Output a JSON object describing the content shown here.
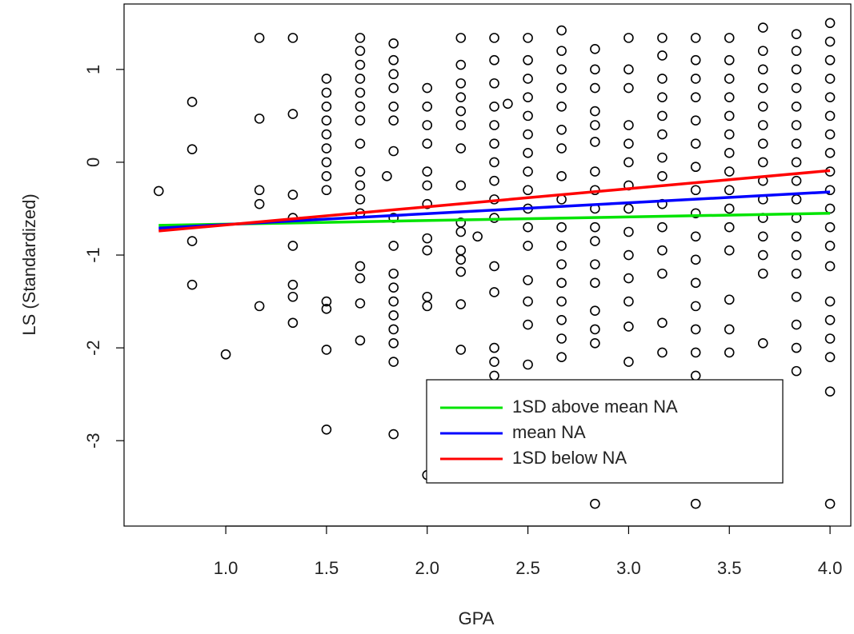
{
  "chart_data": {
    "type": "scatter",
    "xlabel": "GPA",
    "ylabel": "LS (Standardized)",
    "xlim": [
      0.495,
      4.103
    ],
    "ylim": [
      -3.92,
      1.705
    ],
    "xticks": [
      {
        "value": 1,
        "label": "1.0"
      },
      1.5,
      {
        "value": 2,
        "label": "2.0"
      },
      2.5,
      {
        "value": 3,
        "label": "3.0"
      },
      3.5,
      {
        "value": 4,
        "label": "4.0"
      }
    ],
    "yticks": [
      -3,
      -2,
      -1,
      0,
      1
    ],
    "legend": "bottomright",
    "points": {
      "color": "#000000",
      "x": [
        0.667,
        0.833,
        0.833,
        0.833,
        0.833,
        1.0,
        1.167,
        1.167,
        1.167,
        1.167,
        1.167,
        1.333,
        1.333,
        1.333,
        1.333,
        1.333,
        1.333,
        1.333,
        1.333,
        1.5,
        1.5,
        1.5,
        1.5,
        1.5,
        1.5,
        1.5,
        1.5,
        1.5,
        1.5,
        1.5,
        1.5,
        1.5,
        1.667,
        1.667,
        1.667,
        1.667,
        1.667,
        1.667,
        1.667,
        1.667,
        1.667,
        1.667,
        1.667,
        1.667,
        1.667,
        1.667,
        1.667,
        1.667,
        1.8,
        1.833,
        1.833,
        1.833,
        1.833,
        1.833,
        1.833,
        1.833,
        1.833,
        1.833,
        1.833,
        1.833,
        1.833,
        1.833,
        1.833,
        1.833,
        1.833,
        1.833,
        2.0,
        2.0,
        2.0,
        2.0,
        2.0,
        2.0,
        2.0,
        2.0,
        2.0,
        2.0,
        2.0,
        2.0,
        2.167,
        2.167,
        2.167,
        2.167,
        2.167,
        2.167,
        2.167,
        2.167,
        2.167,
        2.167,
        2.167,
        2.167,
        2.167,
        2.167,
        2.167,
        2.25,
        2.333,
        2.333,
        2.333,
        2.333,
        2.333,
        2.333,
        2.333,
        2.333,
        2.333,
        2.333,
        2.333,
        2.333,
        2.333,
        2.333,
        2.333,
        2.4,
        2.5,
        2.5,
        2.5,
        2.5,
        2.5,
        2.5,
        2.5,
        2.5,
        2.5,
        2.5,
        2.5,
        2.5,
        2.5,
        2.5,
        2.5,
        2.5,
        2.667,
        2.667,
        2.667,
        2.667,
        2.667,
        2.667,
        2.667,
        2.667,
        2.667,
        2.667,
        2.667,
        2.667,
        2.667,
        2.667,
        2.667,
        2.667,
        2.667,
        2.833,
        2.833,
        2.833,
        2.833,
        2.833,
        2.833,
        2.833,
        2.833,
        2.833,
        2.833,
        2.833,
        2.833,
        2.833,
        2.833,
        2.833,
        2.833,
        2.833,
        3.0,
        3.0,
        3.0,
        3.0,
        3.0,
        3.0,
        3.0,
        3.0,
        3.0,
        3.0,
        3.0,
        3.0,
        3.0,
        3.0,
        3.167,
        3.167,
        3.167,
        3.167,
        3.167,
        3.167,
        3.167,
        3.167,
        3.167,
        3.167,
        3.167,
        3.167,
        3.167,
        3.167,
        3.333,
        3.333,
        3.333,
        3.333,
        3.333,
        3.333,
        3.333,
        3.333,
        3.333,
        3.333,
        3.333,
        3.333,
        3.333,
        3.333,
        3.333,
        3.333,
        3.333,
        3.5,
        3.5,
        3.5,
        3.5,
        3.5,
        3.5,
        3.5,
        3.5,
        3.5,
        3.5,
        3.5,
        3.5,
        3.5,
        3.5,
        3.5,
        3.667,
        3.667,
        3.667,
        3.667,
        3.667,
        3.667,
        3.667,
        3.667,
        3.667,
        3.667,
        3.667,
        3.667,
        3.667,
        3.667,
        3.667,
        3.833,
        3.833,
        3.833,
        3.833,
        3.833,
        3.833,
        3.833,
        3.833,
        3.833,
        3.833,
        3.833,
        3.833,
        3.833,
        3.833,
        3.833,
        3.833,
        3.833,
        3.833,
        4.0,
        4.0,
        4.0,
        4.0,
        4.0,
        4.0,
        4.0,
        4.0,
        4.0,
        4.0,
        4.0,
        4.0,
        4.0,
        4.0,
        4.0,
        4.0,
        4.0,
        4.0,
        4.0,
        4.0
      ],
      "values": [
        -0.31,
        0.65,
        0.14,
        -0.85,
        -1.32,
        -2.07,
        1.34,
        0.47,
        -0.3,
        -0.45,
        -1.55,
        1.34,
        0.52,
        -0.35,
        -0.6,
        -0.9,
        -1.32,
        -1.45,
        -1.73,
        0.9,
        0.75,
        0.6,
        0.45,
        0.3,
        0.15,
        0,
        -0.15,
        -0.3,
        -1.5,
        -1.58,
        -2.02,
        -2.88,
        1.34,
        1.2,
        1.05,
        0.9,
        0.75,
        0.6,
        0.45,
        0.2,
        -0.1,
        -0.25,
        -0.4,
        -0.55,
        -1.12,
        -1.25,
        -1.52,
        -1.92,
        -0.15,
        1.28,
        1.1,
        0.95,
        0.8,
        0.6,
        0.45,
        0.12,
        -0.6,
        -0.9,
        -1.2,
        -1.35,
        -1.5,
        -1.65,
        -1.8,
        -1.95,
        -2.15,
        -2.93,
        0.8,
        0.6,
        0.4,
        0.2,
        -0.1,
        -0.25,
        -0.45,
        -0.82,
        -0.95,
        -1.45,
        -1.55,
        -3.37,
        1.34,
        1.05,
        0.85,
        0.7,
        0.55,
        0.4,
        0.15,
        -0.25,
        -0.65,
        -0.75,
        -0.95,
        -1.05,
        -1.18,
        -1.53,
        -2.02,
        -0.8,
        1.34,
        1.1,
        0.85,
        0.6,
        0.4,
        0.2,
        0,
        -0.2,
        -0.4,
        -0.6,
        -1.12,
        -1.4,
        -2.0,
        -2.15,
        -2.3,
        0.63,
        1.34,
        1.1,
        0.9,
        0.7,
        0.5,
        0.3,
        0.1,
        -0.1,
        -0.3,
        -0.5,
        -0.7,
        -0.9,
        -1.27,
        -1.5,
        -1.75,
        -2.18,
        1.42,
        1.2,
        1.0,
        0.8,
        0.6,
        0.35,
        0.15,
        -0.15,
        -0.4,
        -0.7,
        -0.9,
        -1.1,
        -1.3,
        -1.5,
        -1.7,
        -1.9,
        -2.1,
        1.22,
        1.0,
        0.8,
        0.55,
        0.4,
        0.22,
        -0.1,
        -0.3,
        -0.5,
        -0.7,
        -0.85,
        -1.1,
        -1.3,
        -1.6,
        -1.8,
        -1.95,
        -3.68,
        1.34,
        1.0,
        0.8,
        0.4,
        0.2,
        0,
        -0.25,
        -0.5,
        -0.75,
        -1.0,
        -1.25,
        -1.5,
        -1.77,
        -2.15,
        1.34,
        1.15,
        0.9,
        0.7,
        0.5,
        0.3,
        0.05,
        -0.15,
        -0.45,
        -0.7,
        -0.95,
        -1.2,
        -1.73,
        -2.05,
        1.34,
        1.1,
        0.9,
        0.7,
        0.45,
        0.2,
        -0.05,
        -0.3,
        -0.55,
        -0.8,
        -1.05,
        -1.3,
        -1.55,
        -1.8,
        -2.05,
        -2.3,
        -3.68,
        1.34,
        1.1,
        0.9,
        0.7,
        0.5,
        0.3,
        0.1,
        -0.1,
        -0.3,
        -0.5,
        -0.7,
        -0.95,
        -1.48,
        -1.8,
        -2.05,
        1.45,
        1.2,
        1.0,
        0.8,
        0.6,
        0.4,
        0.2,
        0,
        -0.2,
        -0.4,
        -0.6,
        -0.8,
        -1.0,
        -1.2,
        -1.95,
        1.38,
        1.2,
        1.0,
        0.8,
        0.6,
        0.4,
        0.2,
        0,
        -0.2,
        -0.4,
        -0.6,
        -0.8,
        -1.0,
        -1.2,
        -1.45,
        -1.75,
        -2.0,
        -2.25,
        1.5,
        1.3,
        1.1,
        0.9,
        0.7,
        0.5,
        0.3,
        0.1,
        -0.1,
        -0.3,
        -0.5,
        -0.7,
        -0.9,
        -1.12,
        -1.5,
        -1.7,
        -1.9,
        -2.1,
        -2.47,
        -3.68
      ]
    },
    "series": [
      {
        "name": "1SD above mean NA",
        "color": "#00e400",
        "x": [
          0.667,
          4.0
        ],
        "values": [
          -0.68,
          -0.55
        ]
      },
      {
        "name": "mean NA",
        "color": "#0000ff",
        "x": [
          0.667,
          4.0
        ],
        "values": [
          -0.71,
          -0.32
        ]
      },
      {
        "name": "1SD below NA",
        "color": "#ff0000",
        "x": [
          0.667,
          4.0
        ],
        "values": [
          -0.74,
          -0.09
        ]
      }
    ]
  }
}
